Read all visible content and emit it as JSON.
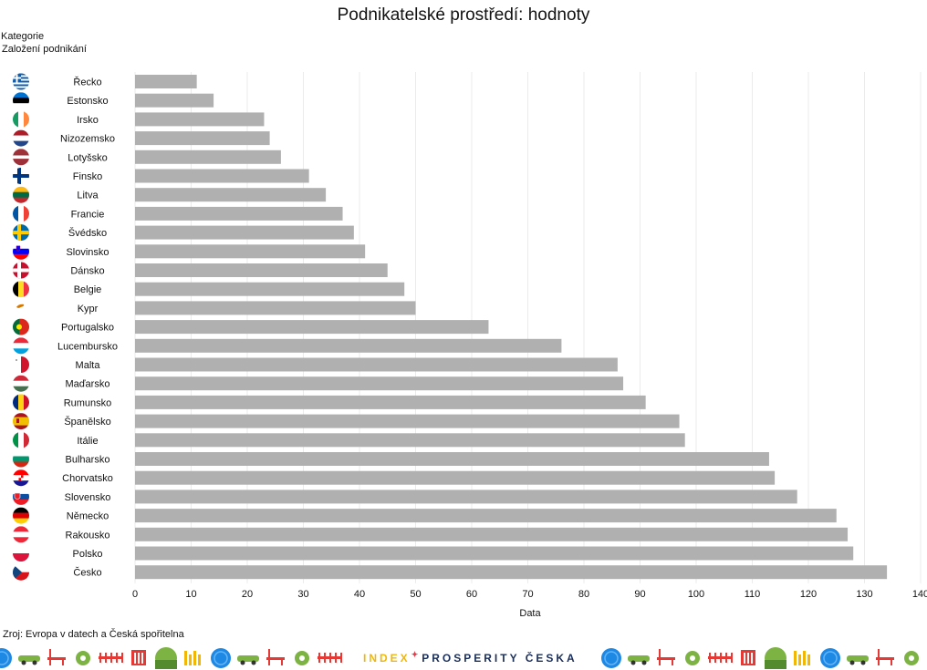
{
  "chart_data": {
    "type": "bar",
    "orientation": "horizontal",
    "title": "Podnikatelské prostředí: hodnoty",
    "category_label": "Kategorie",
    "category_value": "Založení podnikání",
    "xlabel": "Data",
    "xlim": [
      0,
      140
    ],
    "xticks": [
      0,
      10,
      20,
      30,
      40,
      50,
      60,
      70,
      80,
      90,
      100,
      110,
      120,
      130,
      140
    ],
    "grid": "vertical",
    "bar_color": "#b0b0b0",
    "categories": [
      "Řecko",
      "Estonsko",
      "Irsko",
      "Nizozemsko",
      "Lotyšsko",
      "Finsko",
      "Litva",
      "Francie",
      "Švédsko",
      "Slovinsko",
      "Dánsko",
      "Belgie",
      "Kypr",
      "Portugalsko",
      "Lucembursko",
      "Malta",
      "Maďarsko",
      "Rumunsko",
      "Španělsko",
      "Itálie",
      "Bulharsko",
      "Chorvatsko",
      "Slovensko",
      "Německo",
      "Rakousko",
      "Polsko",
      "Česko"
    ],
    "values": [
      11,
      14,
      23,
      24,
      26,
      31,
      34,
      37,
      39,
      41,
      45,
      48,
      50,
      63,
      76,
      86,
      87,
      91,
      97,
      98,
      113,
      114,
      118,
      125,
      127,
      128,
      134
    ],
    "flags": [
      "flag-greece-icon",
      "flag-estonia-icon",
      "flag-ireland-icon",
      "flag-netherlands-icon",
      "flag-latvia-icon",
      "flag-finland-icon",
      "flag-lithuania-icon",
      "flag-france-icon",
      "flag-sweden-icon",
      "flag-slovenia-icon",
      "flag-denmark-icon",
      "flag-belgium-icon",
      "flag-cyprus-icon",
      "flag-portugal-icon",
      "flag-luxembourg-icon",
      "flag-malta-icon",
      "flag-hungary-icon",
      "flag-romania-icon",
      "flag-spain-icon",
      "flag-italy-icon",
      "flag-bulgaria-icon",
      "flag-croatia-icon",
      "flag-slovakia-icon",
      "flag-germany-icon",
      "flag-austria-icon",
      "flag-poland-icon",
      "flag-czechia-icon"
    ]
  },
  "source": "Zroj: Evropa v datech a Česká spořitelna",
  "brand": {
    "part1": "INDEX",
    "part2": "PROSPERITY ČESKA"
  },
  "footer_icons": [
    "globe-icon",
    "car-icon",
    "bench-icon",
    "gear-icon",
    "fence-icon",
    "building-icon",
    "tree-icon",
    "factory-icon"
  ]
}
